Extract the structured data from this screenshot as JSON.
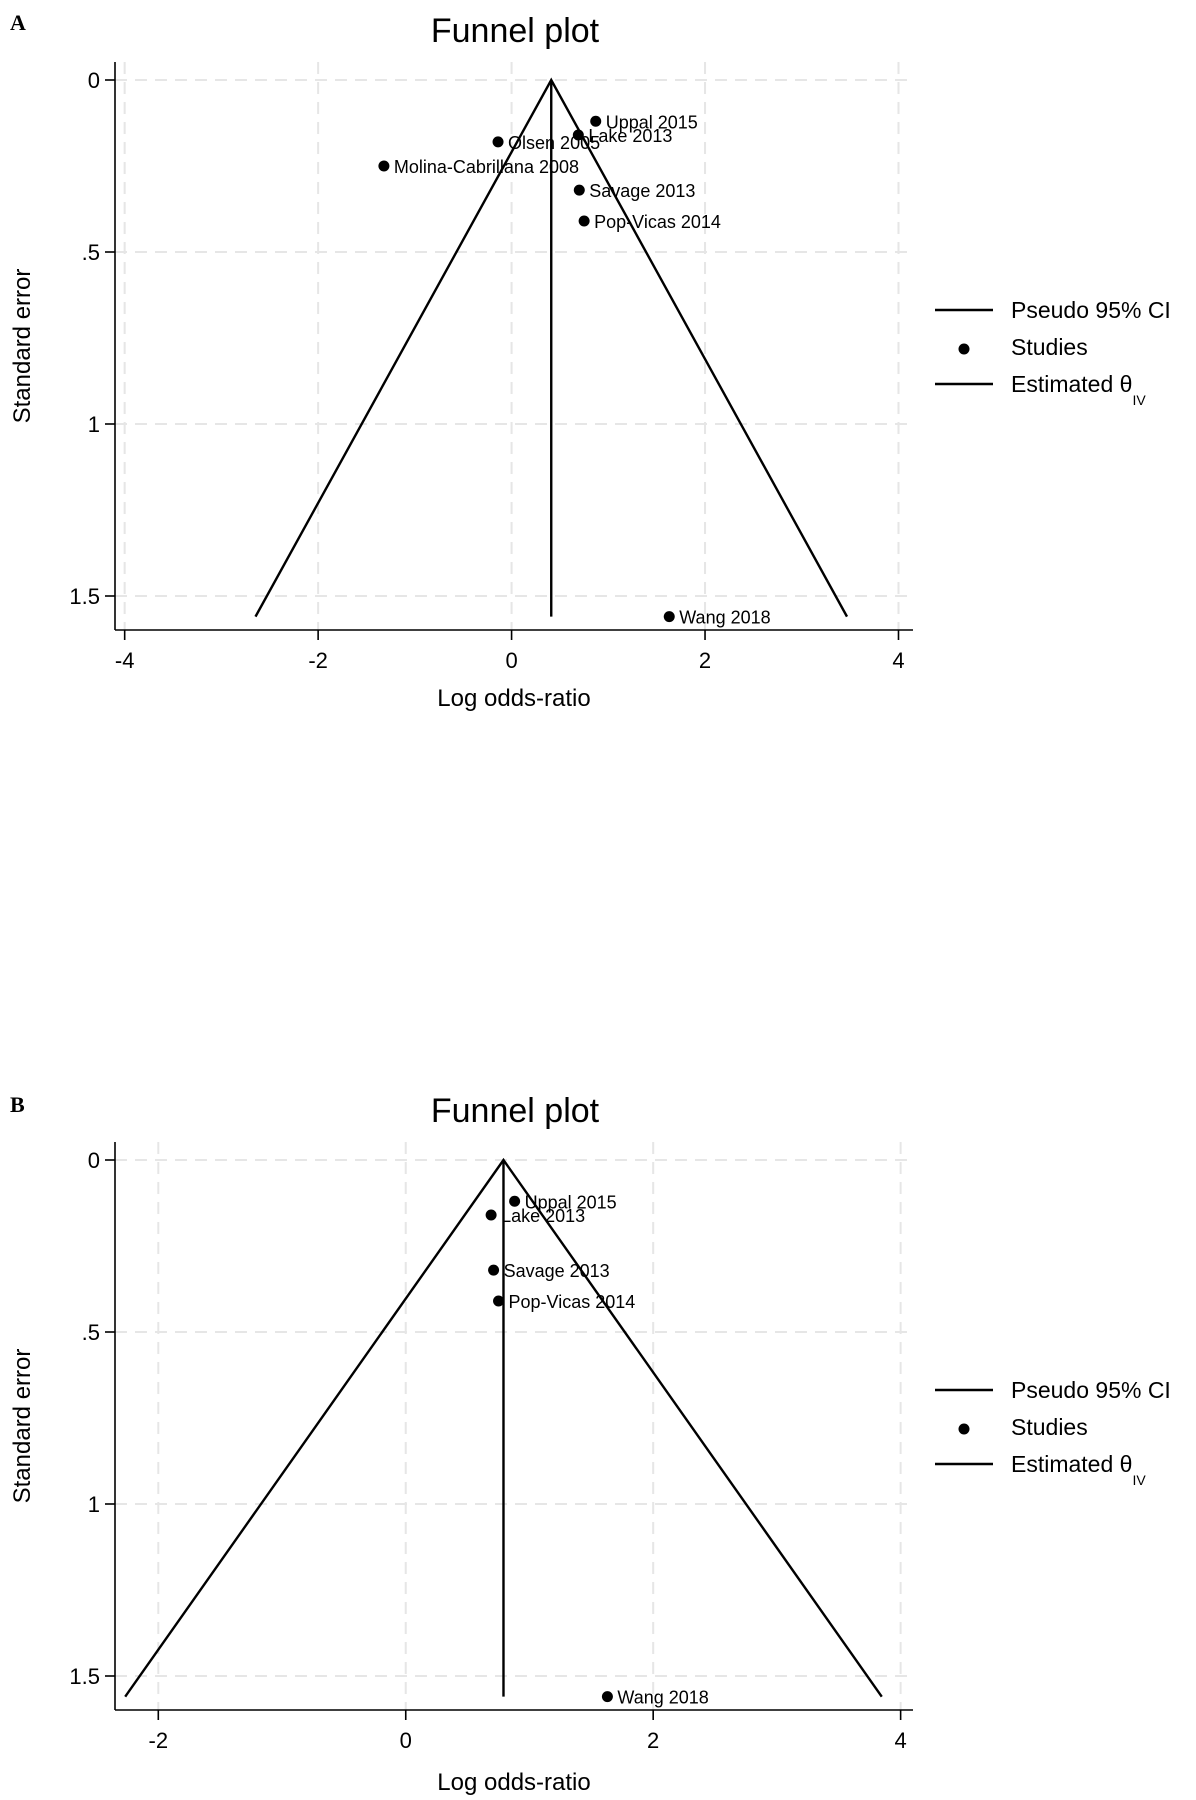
{
  "chart_data": [
    {
      "panel": "A",
      "type": "scatter",
      "title": "Funnel plot",
      "xlabel": "Log odds-ratio",
      "ylabel": "Standard error",
      "xlim": [
        -4.1,
        4.15
      ],
      "ylim": [
        0,
        1.6
      ],
      "y_reversed": true,
      "grid": true,
      "x_ticks": [
        -4,
        -2,
        0,
        2,
        4
      ],
      "x_tick_labels": [
        "-4",
        "-2",
        "0",
        "2",
        "4"
      ],
      "y_ticks": [
        0,
        0.5,
        1,
        1.5
      ],
      "y_tick_labels": [
        "0",
        ".5",
        "1",
        "1.5"
      ],
      "estimate": 0.41,
      "funnel_max_se": 1.56,
      "points": [
        {
          "label": "Uppal 2015",
          "x": 0.87,
          "y": 0.12
        },
        {
          "label": "Lake 2013",
          "x": 0.69,
          "y": 0.16
        },
        {
          "label": "Olsen 2005",
          "x": -0.14,
          "y": 0.18
        },
        {
          "label": "Molina-Cabrillana 2008",
          "x": -1.32,
          "y": 0.25
        },
        {
          "label": "Savage  2013",
          "x": 0.7,
          "y": 0.32
        },
        {
          "label": "Pop-Vicas 2014",
          "x": 0.75,
          "y": 0.41
        },
        {
          "label": "Wang 2018",
          "x": 1.63,
          "y": 1.56
        }
      ],
      "legend": {
        "placement": "right",
        "items": [
          {
            "label": "Pseudo 95% CI",
            "symbol": "line"
          },
          {
            "label": "Studies",
            "symbol": "dot"
          },
          {
            "label": "Estimated θ",
            "sub": "IV",
            "symbol": "line"
          }
        ]
      }
    },
    {
      "panel": "B",
      "type": "scatter",
      "title": "Funnel plot",
      "xlabel": "Log odds-ratio",
      "ylabel": "Standard error",
      "xlim": [
        -2.35,
        4.1
      ],
      "ylim": [
        0,
        1.6
      ],
      "y_reversed": true,
      "grid": true,
      "x_ticks": [
        -2,
        0,
        2,
        4
      ],
      "x_tick_labels": [
        "-2",
        "0",
        "2",
        "4"
      ],
      "y_ticks": [
        0,
        0.5,
        1,
        1.5
      ],
      "y_tick_labels": [
        "0",
        ".5",
        "1",
        "1.5"
      ],
      "estimate": 0.79,
      "funnel_max_se": 1.56,
      "points": [
        {
          "label": "Uppal 2015",
          "x": 0.88,
          "y": 0.12
        },
        {
          "label": "Lake 2013",
          "x": 0.69,
          "y": 0.16
        },
        {
          "label": "Savage  2013",
          "x": 0.71,
          "y": 0.32
        },
        {
          "label": "Pop-Vicas 2014",
          "x": 0.75,
          "y": 0.41
        },
        {
          "label": "Wang 2018",
          "x": 1.63,
          "y": 1.56
        }
      ],
      "legend": {
        "placement": "right",
        "items": [
          {
            "label": "Pseudo 95% CI",
            "symbol": "line"
          },
          {
            "label": "Studies",
            "symbol": "dot"
          },
          {
            "label": "Estimated θ",
            "sub": "IV",
            "symbol": "line"
          }
        ]
      }
    }
  ]
}
